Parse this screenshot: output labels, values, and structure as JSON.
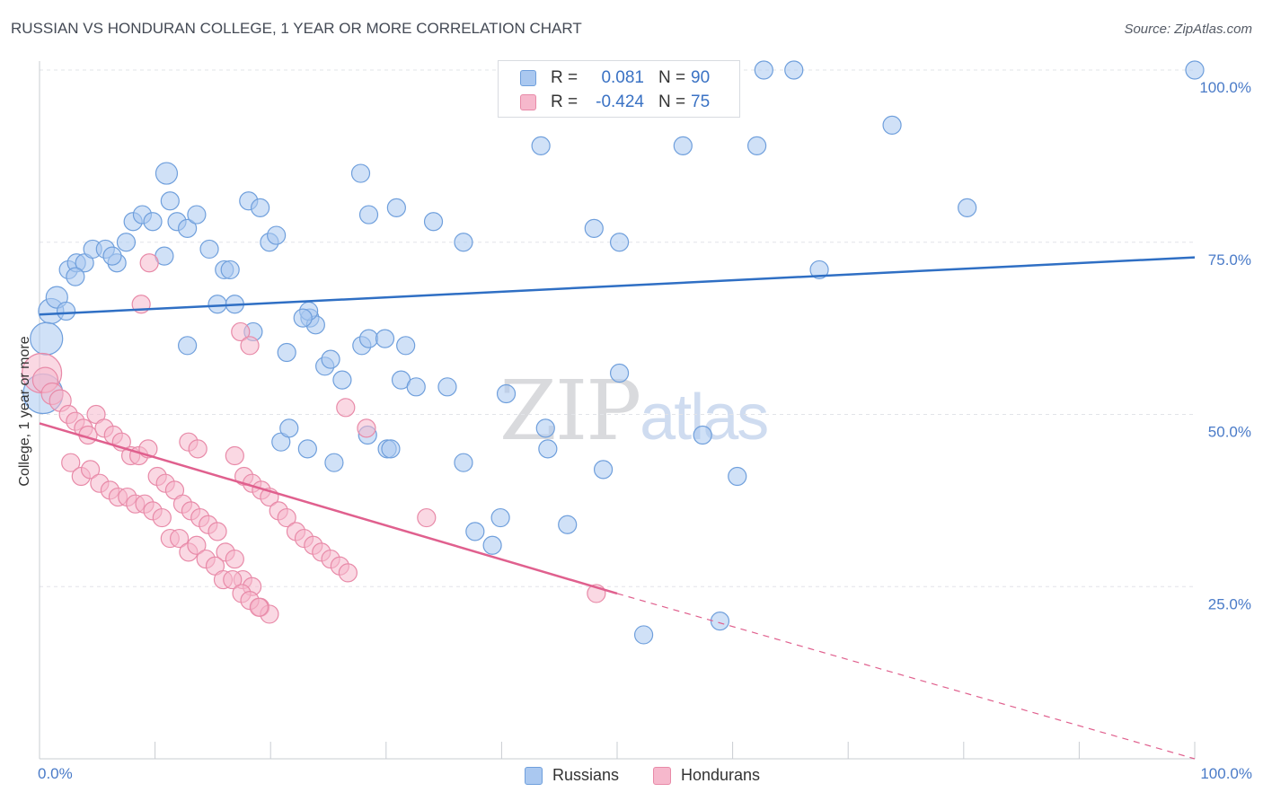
{
  "title": "RUSSIAN VS HONDURAN COLLEGE, 1 YEAR OR MORE CORRELATION CHART",
  "source": "Source: ZipAtlas.com",
  "watermark": {
    "zip": "ZIP",
    "atlas": "atlas"
  },
  "colors": {
    "russians_fill": "#aac8f0",
    "russians_stroke": "#6f9fdc",
    "russians_line": "#2f6fc4",
    "hondurans_fill": "#f6b8cc",
    "hondurans_stroke": "#e88aa8",
    "hondurans_line": "#e0608e",
    "tick_label": "#4a7bc8",
    "grid": "#e2e4e8"
  },
  "legend": {
    "rows": [
      {
        "r_label": "R =",
        "r_value": "0.081",
        "n_label": "N =",
        "n_value": "90"
      },
      {
        "r_label": "R =",
        "r_value": "-0.424",
        "n_label": "N =",
        "n_value": "75"
      }
    ]
  },
  "bottom_legend": [
    "Russians",
    "Hondurans"
  ],
  "chart_data": {
    "type": "scatter",
    "title": "RUSSIAN VS HONDURAN COLLEGE, 1 YEAR OR MORE CORRELATION CHART",
    "xlabel": "",
    "ylabel": "College, 1 year or more",
    "xlim": [
      0,
      100
    ],
    "ylim": [
      0,
      100
    ],
    "x_tick_labels": [
      "0.0%",
      "100.0%"
    ],
    "y_ticks": [
      25,
      50,
      75,
      100
    ],
    "y_tick_labels": [
      "25.0%",
      "50.0%",
      "75.0%",
      "100.0%"
    ],
    "grid": true,
    "legend_position": "top-center",
    "series": [
      {
        "name": "Russians",
        "R": 0.081,
        "N": 90,
        "trend": {
          "x0": 0,
          "y0": 64.5,
          "x1": 100,
          "y1": 72.8
        },
        "points": [
          [
            1,
            65,
            14
          ],
          [
            1.5,
            67,
            12
          ],
          [
            2.3,
            65,
            10
          ],
          [
            0.6,
            61,
            18
          ],
          [
            0.3,
            53,
            22
          ],
          [
            2.5,
            71,
            10
          ],
          [
            3.2,
            72,
            10
          ],
          [
            3.9,
            72,
            10
          ],
          [
            4.6,
            74,
            10
          ],
          [
            5.7,
            74,
            10
          ],
          [
            6.7,
            72,
            10
          ],
          [
            7.5,
            75,
            10
          ],
          [
            8.1,
            78,
            10
          ],
          [
            8.9,
            79,
            10
          ],
          [
            9.8,
            78,
            10
          ],
          [
            10.8,
            73,
            10
          ],
          [
            11.9,
            78,
            10
          ],
          [
            12.8,
            77,
            10
          ],
          [
            13.6,
            79,
            10
          ],
          [
            14.7,
            74,
            10
          ],
          [
            16,
            71,
            10
          ],
          [
            16.5,
            71,
            10
          ],
          [
            18.1,
            81,
            10
          ],
          [
            19.1,
            80,
            10
          ],
          [
            19.9,
            75,
            10
          ],
          [
            20.5,
            76,
            10
          ],
          [
            11.3,
            81,
            10
          ],
          [
            3.1,
            70,
            10
          ],
          [
            11,
            85,
            12
          ],
          [
            6.3,
            73,
            10
          ],
          [
            15.4,
            66,
            10
          ],
          [
            12.8,
            60,
            10
          ],
          [
            16.9,
            66,
            10
          ],
          [
            18.5,
            62,
            10
          ],
          [
            21.4,
            59,
            10
          ],
          [
            23.4,
            64,
            10
          ],
          [
            23.9,
            63,
            10
          ],
          [
            24.7,
            57,
            10
          ],
          [
            25.2,
            58,
            10
          ],
          [
            26.2,
            55,
            10
          ],
          [
            27.9,
            60,
            10
          ],
          [
            28.5,
            61,
            10
          ],
          [
            29.9,
            61,
            10
          ],
          [
            31.7,
            60,
            10
          ],
          [
            31.3,
            55,
            10
          ],
          [
            23.3,
            65,
            10
          ],
          [
            22.8,
            64,
            10
          ],
          [
            20.9,
            46,
            10
          ],
          [
            21.6,
            48,
            10
          ],
          [
            23.2,
            45,
            10
          ],
          [
            25.5,
            43,
            10
          ],
          [
            28.4,
            47,
            10
          ],
          [
            30.1,
            45,
            10
          ],
          [
            30.4,
            45,
            10
          ],
          [
            32.6,
            54,
            10
          ],
          [
            35.3,
            54,
            10
          ],
          [
            36.7,
            43,
            10
          ],
          [
            37.7,
            33,
            10
          ],
          [
            39.2,
            31,
            10
          ],
          [
            39.9,
            35,
            10
          ],
          [
            44,
            45,
            10
          ],
          [
            40.4,
            53,
            10
          ],
          [
            43.8,
            48,
            10
          ],
          [
            45.7,
            34,
            10
          ],
          [
            48.8,
            42,
            10
          ],
          [
            52.3,
            18,
            10
          ],
          [
            57.4,
            47,
            10
          ],
          [
            60.4,
            41,
            10
          ],
          [
            58.9,
            20,
            10
          ],
          [
            50.2,
            56,
            10
          ],
          [
            27.8,
            85,
            10
          ],
          [
            28.5,
            79,
            10
          ],
          [
            30.9,
            80,
            10
          ],
          [
            34.1,
            78,
            10
          ],
          [
            36.7,
            75,
            10
          ],
          [
            40.5,
            96,
            10
          ],
          [
            41.1,
            96,
            10
          ],
          [
            43.4,
            89,
            10
          ],
          [
            48,
            77,
            10
          ],
          [
            50.2,
            75,
            10
          ],
          [
            53.2,
            100,
            10
          ],
          [
            55.7,
            89,
            10
          ],
          [
            59.4,
            100,
            10
          ],
          [
            62.1,
            89,
            10
          ],
          [
            62.7,
            100,
            10
          ],
          [
            65.3,
            100,
            10
          ],
          [
            67.5,
            71,
            10
          ],
          [
            73.8,
            92,
            10
          ],
          [
            80.3,
            80,
            10
          ],
          [
            100,
            100,
            10
          ]
        ]
      },
      {
        "name": "Hondurans",
        "R": -0.424,
        "N": 75,
        "trend": {
          "x0": 0,
          "y0": 48.7,
          "x1": 50,
          "y1": 24.0,
          "dash_x1": 100,
          "dash_y1": 0
        },
        "points": [
          [
            0.2,
            56,
            22
          ],
          [
            0.5,
            55,
            14
          ],
          [
            1.1,
            53,
            12
          ],
          [
            1.8,
            52,
            12
          ],
          [
            2.5,
            50,
            10
          ],
          [
            3.1,
            49,
            10
          ],
          [
            3.8,
            48,
            10
          ],
          [
            4.2,
            47,
            10
          ],
          [
            4.9,
            50,
            10
          ],
          [
            5.6,
            48,
            10
          ],
          [
            6.4,
            47,
            10
          ],
          [
            7.1,
            46,
            10
          ],
          [
            7.9,
            44,
            10
          ],
          [
            8.6,
            44,
            10
          ],
          [
            9.4,
            45,
            10
          ],
          [
            10.2,
            41,
            10
          ],
          [
            10.9,
            40,
            10
          ],
          [
            11.7,
            39,
            10
          ],
          [
            12.4,
            37,
            10
          ],
          [
            13.1,
            36,
            10
          ],
          [
            13.9,
            35,
            10
          ],
          [
            14.6,
            34,
            10
          ],
          [
            15.4,
            33,
            10
          ],
          [
            16.1,
            30,
            10
          ],
          [
            16.9,
            29,
            10
          ],
          [
            17.6,
            26,
            10
          ],
          [
            18.4,
            25,
            10
          ],
          [
            19.1,
            22,
            10
          ],
          [
            19.9,
            21,
            10
          ],
          [
            2.7,
            43,
            10
          ],
          [
            3.6,
            41,
            10
          ],
          [
            4.4,
            42,
            10
          ],
          [
            5.2,
            40,
            10
          ],
          [
            6.1,
            39,
            10
          ],
          [
            6.8,
            38,
            10
          ],
          [
            7.6,
            38,
            10
          ],
          [
            8.3,
            37,
            10
          ],
          [
            9.1,
            37,
            10
          ],
          [
            9.8,
            36,
            10
          ],
          [
            10.6,
            35,
            10
          ],
          [
            11.3,
            32,
            10
          ],
          [
            12.1,
            32,
            10
          ],
          [
            12.9,
            30,
            10
          ],
          [
            13.6,
            31,
            10
          ],
          [
            14.4,
            29,
            10
          ],
          [
            15.2,
            28,
            10
          ],
          [
            15.9,
            26,
            10
          ],
          [
            16.7,
            26,
            10
          ],
          [
            17.5,
            24,
            10
          ],
          [
            18.2,
            23,
            10
          ],
          [
            19,
            22,
            10
          ],
          [
            12.9,
            46,
            10
          ],
          [
            13.7,
            45,
            10
          ],
          [
            16.9,
            44,
            10
          ],
          [
            17.7,
            41,
            10
          ],
          [
            18.4,
            40,
            10
          ],
          [
            19.2,
            39,
            10
          ],
          [
            19.9,
            38,
            10
          ],
          [
            20.7,
            36,
            10
          ],
          [
            21.4,
            35,
            10
          ],
          [
            22.2,
            33,
            10
          ],
          [
            22.9,
            32,
            10
          ],
          [
            23.7,
            31,
            10
          ],
          [
            24.4,
            30,
            10
          ],
          [
            25.2,
            29,
            10
          ],
          [
            26,
            28,
            10
          ],
          [
            26.7,
            27,
            10
          ],
          [
            8.8,
            66,
            10
          ],
          [
            9.5,
            72,
            10
          ],
          [
            17.4,
            62,
            10
          ],
          [
            18.2,
            60,
            10
          ],
          [
            26.5,
            51,
            10
          ],
          [
            28.3,
            48,
            10
          ],
          [
            33.5,
            35,
            10
          ],
          [
            48.2,
            24,
            10
          ]
        ]
      }
    ]
  }
}
